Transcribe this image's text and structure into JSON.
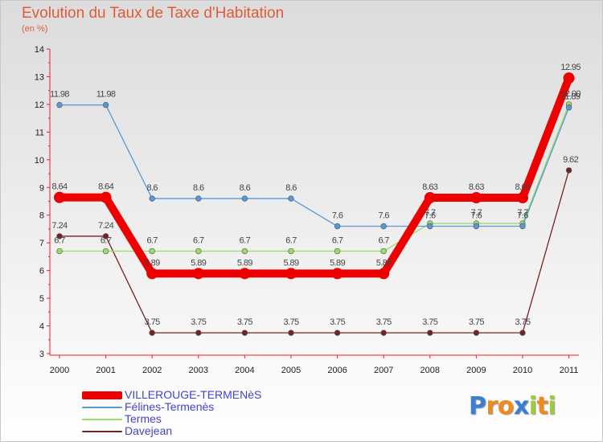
{
  "chart_data": {
    "type": "line",
    "title": "Evolution du Taux de Taxe d'Habitation",
    "subtitle": "(en %)",
    "x": [
      "2000",
      "2001",
      "2002",
      "2003",
      "2004",
      "2005",
      "2006",
      "2007",
      "2008",
      "2009",
      "2010",
      "2011"
    ],
    "ylim": [
      3,
      14
    ],
    "yticks": [
      "3",
      "4",
      "5",
      "6",
      "7",
      "8",
      "9",
      "10",
      "11",
      "12",
      "13",
      "14"
    ],
    "grid": false,
    "legend_position": "bottom-left",
    "series": [
      {
        "name": "VILLEROUGE-TERMENèS",
        "color": "#ee0000",
        "values": [
          8.64,
          8.64,
          5.89,
          5.89,
          5.89,
          5.89,
          5.89,
          5.89,
          8.63,
          8.63,
          8.63,
          12.95
        ],
        "labels": [
          "8.64",
          "8.64",
          "5.89",
          "5.89",
          "5.89",
          "5.89",
          "5.89",
          "5.89",
          "8.63",
          "8.63",
          "8.63",
          "12.95"
        ]
      },
      {
        "name": "Félines-Termenès",
        "color": "#5599d8",
        "values": [
          11.98,
          11.98,
          8.6,
          8.6,
          8.6,
          8.6,
          7.6,
          7.6,
          7.6,
          7.6,
          7.6,
          11.89
        ],
        "labels": [
          "11.98",
          "11.98",
          "8.6",
          "8.6",
          "8.6",
          "8.6",
          "7.6",
          "7.6",
          "7.6",
          "7.6",
          "7.6",
          "11.89"
        ]
      },
      {
        "name": "Termes",
        "color": "#99dd66",
        "values": [
          6.7,
          6.7,
          6.7,
          6.7,
          6.7,
          6.7,
          6.7,
          6.7,
          7.7,
          7.7,
          7.7,
          12
        ],
        "labels": [
          "6.7",
          "6.7",
          "6.7",
          "6.7",
          "6.7",
          "6.7",
          "6.7",
          "6.7",
          "7.7",
          "7.7",
          "7.7",
          "12.00"
        ]
      },
      {
        "name": "Davejean",
        "color": "#772222",
        "values": [
          7.24,
          7.24,
          3.75,
          3.75,
          3.75,
          3.75,
          3.75,
          3.75,
          3.75,
          3.75,
          3.75,
          9.62
        ],
        "labels": [
          "7.24",
          "7.24",
          "3.75",
          "3.75",
          "3.75",
          "3.75",
          "3.75",
          "3.75",
          "3.75",
          "3.75",
          "3.75",
          "9.62"
        ]
      }
    ]
  },
  "brand": {
    "letters": [
      "P",
      "r",
      "o",
      "x",
      "i",
      "t",
      "i"
    ],
    "colors": [
      "#3b7fd4",
      "#f08a1c",
      "#f08a1c",
      "#3b7fd4",
      "#9ccc3c",
      "#f08a1c",
      "#9ccc3c"
    ]
  }
}
